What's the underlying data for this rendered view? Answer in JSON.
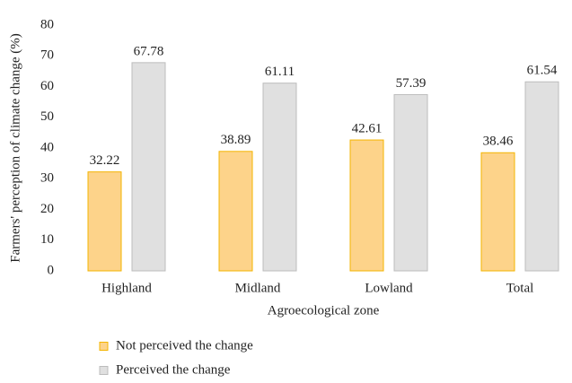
{
  "chart_data": {
    "type": "bar",
    "y_label": "Farmers' perception of climate change (%)",
    "x_label": "Agroecological zone",
    "categories": [
      "Highland",
      "Midland",
      "Lowland",
      "Total"
    ],
    "series": [
      {
        "name": "Not perceived the change",
        "color": "#fdd38a",
        "stroke": "#f4b400",
        "values": [
          32.22,
          38.89,
          42.61,
          38.46
        ]
      },
      {
        "name": "Perceived the change",
        "color": "#e0e0e0",
        "stroke": "#bcbcbc",
        "values": [
          67.78,
          61.11,
          57.39,
          61.54
        ]
      }
    ],
    "ylim": [
      0,
      80
    ],
    "yticks": [
      0,
      10,
      20,
      30,
      40,
      50,
      60,
      70,
      80
    ],
    "grid": false,
    "legend": "bottom"
  }
}
